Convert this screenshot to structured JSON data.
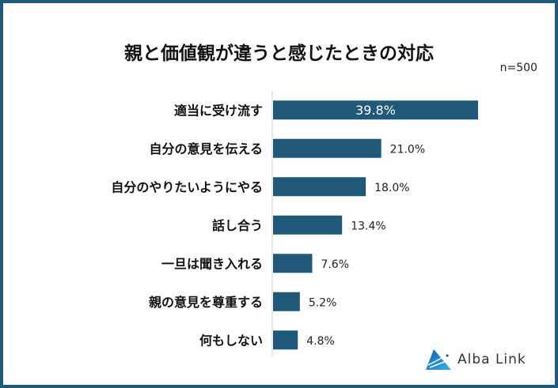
{
  "chart_data": {
    "type": "bar",
    "orientation": "horizontal",
    "title": "親と価値観が違うと感じたときの対応",
    "note": "n=500",
    "categories": [
      "適当に受け流す",
      "自分の意見を伝える",
      "自分のやりたいようにやる",
      "話し合う",
      "一旦は聞き入れる",
      "親の意見を尊重する",
      "何もしない"
    ],
    "values": [
      39.8,
      21.0,
      18.0,
      13.4,
      7.6,
      5.2,
      4.8
    ],
    "labels": [
      "39.8%",
      "21.0%",
      "18.0%",
      "13.4%",
      "7.6%",
      "5.2%",
      "4.8%"
    ],
    "unit": "%",
    "xlim": [
      0,
      39.8
    ],
    "grid": false,
    "bar_color": "#1f5878"
  },
  "logo": {
    "text": "Alba Link"
  },
  "colors": {
    "border": "#1f5a7c",
    "bar": "#1f5878"
  }
}
